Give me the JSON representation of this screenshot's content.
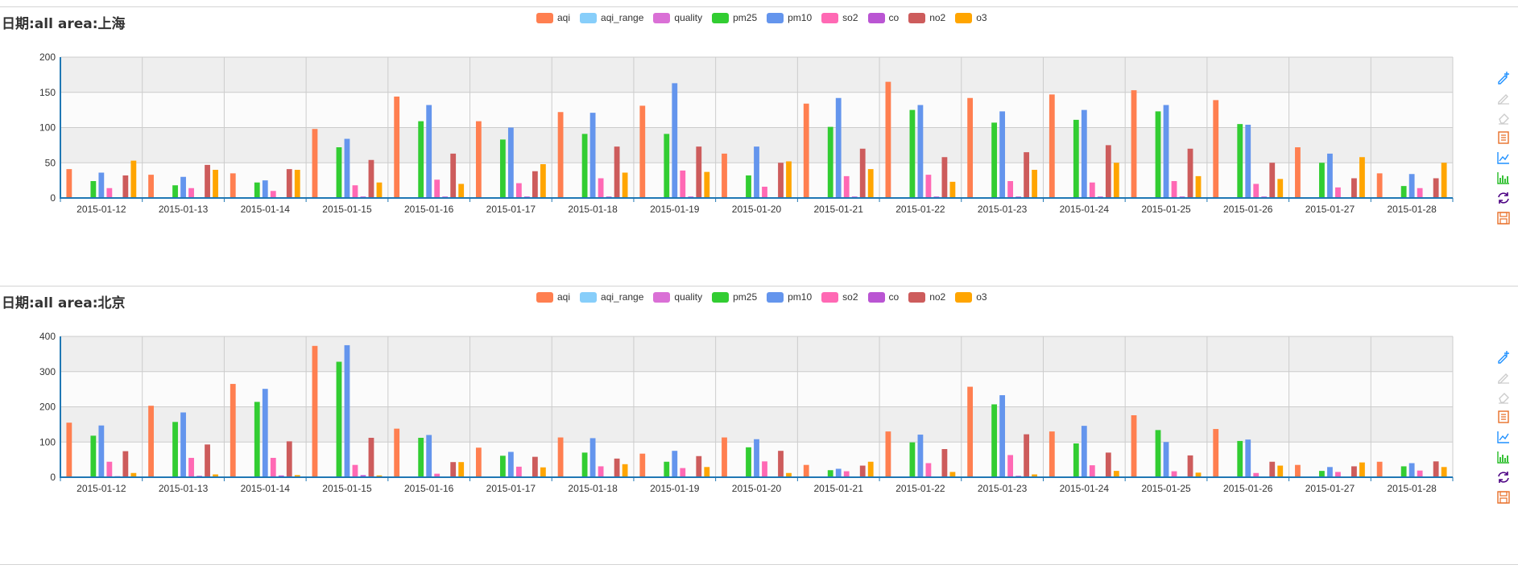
{
  "legend": [
    {
      "name": "aqi",
      "color": "#ff7f50"
    },
    {
      "name": "aqi_range",
      "color": "#87cefa"
    },
    {
      "name": "quality",
      "color": "#da70d6"
    },
    {
      "name": "pm25",
      "color": "#32cd32"
    },
    {
      "name": "pm10",
      "color": "#6495ed"
    },
    {
      "name": "so2",
      "color": "#ff69b4"
    },
    {
      "name": "co",
      "color": "#ba55d3"
    },
    {
      "name": "no2",
      "color": "#cd5c5c"
    },
    {
      "name": "o3",
      "color": "#ffa500"
    }
  ],
  "toolbox": [
    {
      "icon": "pencil-add-icon",
      "color": "#1e90ff"
    },
    {
      "icon": "pencil-icon",
      "color": "#cccccc"
    },
    {
      "icon": "eraser-icon",
      "color": "#cccccc"
    },
    {
      "icon": "data-view-icon",
      "color": "#e86e27"
    },
    {
      "icon": "line-chart-icon",
      "color": "#1e90ff"
    },
    {
      "icon": "bar-chart-icon",
      "color": "#22bb22"
    },
    {
      "icon": "restore-icon",
      "color": "#4b0082"
    },
    {
      "icon": "save-image-icon",
      "color": "#e86e27"
    }
  ],
  "chart_data": [
    {
      "type": "bar",
      "title": "日期:all area:上海",
      "categories": [
        "2015-01-12",
        "2015-01-13",
        "2015-01-14",
        "2015-01-15",
        "2015-01-16",
        "2015-01-17",
        "2015-01-18",
        "2015-01-19",
        "2015-01-20",
        "2015-01-21",
        "2015-01-22",
        "2015-01-23",
        "2015-01-24",
        "2015-01-25",
        "2015-01-26",
        "2015-01-27",
        "2015-01-28"
      ],
      "ylim": [
        0,
        200
      ],
      "yticks": [
        0,
        50,
        100,
        150,
        200
      ],
      "series": [
        {
          "name": "aqi",
          "values": [
            41,
            33,
            35,
            98,
            144,
            109,
            122,
            131,
            63,
            134,
            165,
            142,
            147,
            153,
            139,
            72,
            35
          ]
        },
        {
          "name": "aqi_range",
          "values": [
            0,
            0,
            0,
            0,
            0,
            0,
            0,
            0,
            0,
            0,
            0,
            0,
            0,
            0,
            0,
            0,
            0
          ]
        },
        {
          "name": "quality",
          "values": [
            0,
            0,
            0,
            0,
            0,
            0,
            0,
            0,
            0,
            0,
            0,
            0,
            0,
            0,
            0,
            0,
            0
          ]
        },
        {
          "name": "pm25",
          "values": [
            24,
            18,
            22,
            72,
            109,
            83,
            91,
            91,
            32,
            101,
            125,
            107,
            111,
            123,
            105,
            50,
            17
          ]
        },
        {
          "name": "pm10",
          "values": [
            36,
            30,
            25,
            84,
            132,
            100,
            121,
            163,
            73,
            142,
            132,
            123,
            125,
            132,
            104,
            63,
            34
          ]
        },
        {
          "name": "so2",
          "values": [
            14,
            14,
            10,
            18,
            26,
            21,
            28,
            39,
            16,
            31,
            33,
            24,
            22,
            24,
            20,
            15,
            14
          ]
        },
        {
          "name": "co",
          "values": [
            1,
            1,
            1,
            2,
            2,
            2,
            2,
            2,
            1,
            2,
            2,
            2,
            2,
            2,
            2,
            1,
            1
          ]
        },
        {
          "name": "no2",
          "values": [
            32,
            47,
            41,
            54,
            63,
            38,
            73,
            73,
            50,
            70,
            58,
            65,
            75,
            70,
            50,
            28,
            28
          ]
        },
        {
          "name": "o3",
          "values": [
            53,
            40,
            40,
            22,
            20,
            48,
            36,
            37,
            52,
            41,
            23,
            40,
            50,
            31,
            27,
            58,
            50
          ]
        }
      ]
    },
    {
      "type": "bar",
      "title": "日期:all area:北京",
      "categories": [
        "2015-01-12",
        "2015-01-13",
        "2015-01-14",
        "2015-01-15",
        "2015-01-16",
        "2015-01-17",
        "2015-01-18",
        "2015-01-19",
        "2015-01-20",
        "2015-01-21",
        "2015-01-22",
        "2015-01-23",
        "2015-01-24",
        "2015-01-25",
        "2015-01-26",
        "2015-01-27",
        "2015-01-28"
      ],
      "ylim": [
        0,
        400
      ],
      "yticks": [
        0,
        100,
        200,
        300,
        400
      ],
      "series": [
        {
          "name": "aqi",
          "values": [
            155,
            203,
            265,
            373,
            138,
            84,
            113,
            67,
            113,
            35,
            130,
            257,
            130,
            176,
            137,
            35,
            44
          ]
        },
        {
          "name": "aqi_range",
          "values": [
            0,
            0,
            0,
            0,
            0,
            0,
            0,
            0,
            0,
            0,
            0,
            0,
            0,
            0,
            0,
            0,
            0
          ]
        },
        {
          "name": "quality",
          "values": [
            0,
            0,
            0,
            0,
            0,
            0,
            0,
            0,
            0,
            0,
            0,
            0,
            0,
            0,
            0,
            0,
            0
          ]
        },
        {
          "name": "pm25",
          "values": [
            118,
            157,
            214,
            328,
            112,
            61,
            70,
            44,
            85,
            20,
            99,
            207,
            96,
            134,
            103,
            18,
            31
          ]
        },
        {
          "name": "pm10",
          "values": [
            147,
            184,
            251,
            375,
            120,
            72,
            111,
            75,
            108,
            24,
            121,
            233,
            146,
            100,
            107,
            29,
            40
          ]
        },
        {
          "name": "so2",
          "values": [
            44,
            55,
            55,
            35,
            10,
            30,
            31,
            26,
            45,
            17,
            40,
            63,
            34,
            17,
            12,
            15,
            19
          ]
        },
        {
          "name": "co",
          "values": [
            3,
            4,
            5,
            6,
            2,
            1,
            2,
            1,
            2,
            1,
            2,
            4,
            2,
            2,
            2,
            1,
            1
          ]
        },
        {
          "name": "no2",
          "values": [
            74,
            93,
            102,
            112,
            43,
            58,
            53,
            60,
            75,
            33,
            80,
            122,
            70,
            62,
            44,
            31,
            45
          ]
        },
        {
          "name": "o3",
          "values": [
            12,
            8,
            6,
            5,
            43,
            28,
            37,
            29,
            12,
            44,
            15,
            8,
            18,
            13,
            33,
            42,
            29
          ]
        }
      ]
    }
  ]
}
